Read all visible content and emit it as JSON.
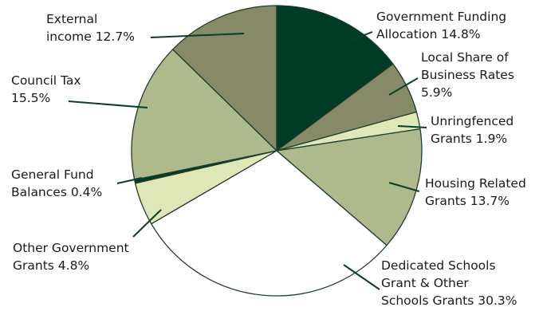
{
  "chart_data": {
    "type": "pie",
    "title": "",
    "slices": [
      {
        "label_lines": [
          "Government Funding",
          "Allocation 14.8%"
        ],
        "value": 14.8,
        "color": "#003b26"
      },
      {
        "label_lines": [
          "Local Share of",
          "Business Rates",
          "5.9%"
        ],
        "value": 5.9,
        "color": "#868a69"
      },
      {
        "label_lines": [
          "Unringfenced",
          "Grants 1.9%"
        ],
        "value": 1.9,
        "color": "#dfe7b7"
      },
      {
        "label_lines": [
          "Housing Related",
          "Grants 13.7%"
        ],
        "value": 13.7,
        "color": "#aeb98c"
      },
      {
        "label_lines": [
          "Dedicated Schools",
          "Grant & Other",
          "Schools Grants 30.3%"
        ],
        "value": 30.3,
        "color": "#ffffff"
      },
      {
        "label_lines": [
          "Other Government",
          "Grants 4.8%"
        ],
        "value": 4.8,
        "color": "#dfe7b7"
      },
      {
        "label_lines": [
          "General Fund",
          "Balances 0.4%"
        ],
        "value": 0.4,
        "color": "#003b26"
      },
      {
        "label_lines": [
          "Council Tax",
          "15.5%"
        ],
        "value": 15.5,
        "color": "#aeb98c"
      },
      {
        "label_lines": [
          "External",
          "income 12.7%"
        ],
        "value": 12.7,
        "color": "#868a69"
      }
    ],
    "edge_color": "#1f3d2b",
    "leader_color": "#0b3d2a"
  }
}
